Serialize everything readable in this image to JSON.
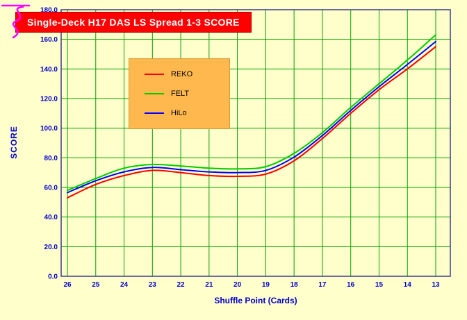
{
  "page": {
    "background": "#FFFFCC",
    "scribble_color": "#FF00FF"
  },
  "title_box": {
    "bg": "#FF0000",
    "color": "#FFFFFF"
  },
  "legend": {
    "bg": "#FFB84D",
    "position": "inside-upper-left"
  },
  "chart_data": {
    "type": "line",
    "title": "Single-Deck H17 DAS LS Spread 1-3 SCORE",
    "xlabel": "Shuffle Point (Cards)",
    "ylabel": "SCORE",
    "x_categories": [
      "26",
      "25",
      "24",
      "23",
      "22",
      "21",
      "20",
      "19",
      "18",
      "17",
      "16",
      "15",
      "14",
      "13"
    ],
    "ylim": [
      0,
      180
    ],
    "ytick_step": 20,
    "ytick_format_decimals": 1,
    "grid": true,
    "grid_color": "#00A000",
    "tick_color": "#0000CC",
    "frame_color": "#3C3C8C",
    "legend_position": "inside-upper-left",
    "series": [
      {
        "name": "REKO",
        "color": "#FF0000",
        "values": [
          53,
          62,
          68,
          71.5,
          70,
          68,
          67.5,
          69,
          78,
          93,
          110,
          126,
          140,
          155
        ]
      },
      {
        "name": "FELT",
        "color": "#00CC00",
        "values": [
          58,
          66,
          73,
          75.5,
          74.5,
          73,
          72.5,
          74,
          83,
          97,
          114,
          130,
          146,
          163
        ]
      },
      {
        "name": "HiLo",
        "color": "#0000FF",
        "values": [
          56.5,
          64.5,
          70.5,
          73.5,
          72,
          70.5,
          70,
          71.5,
          80.5,
          95,
          112,
          128,
          143,
          158.5
        ]
      }
    ]
  }
}
